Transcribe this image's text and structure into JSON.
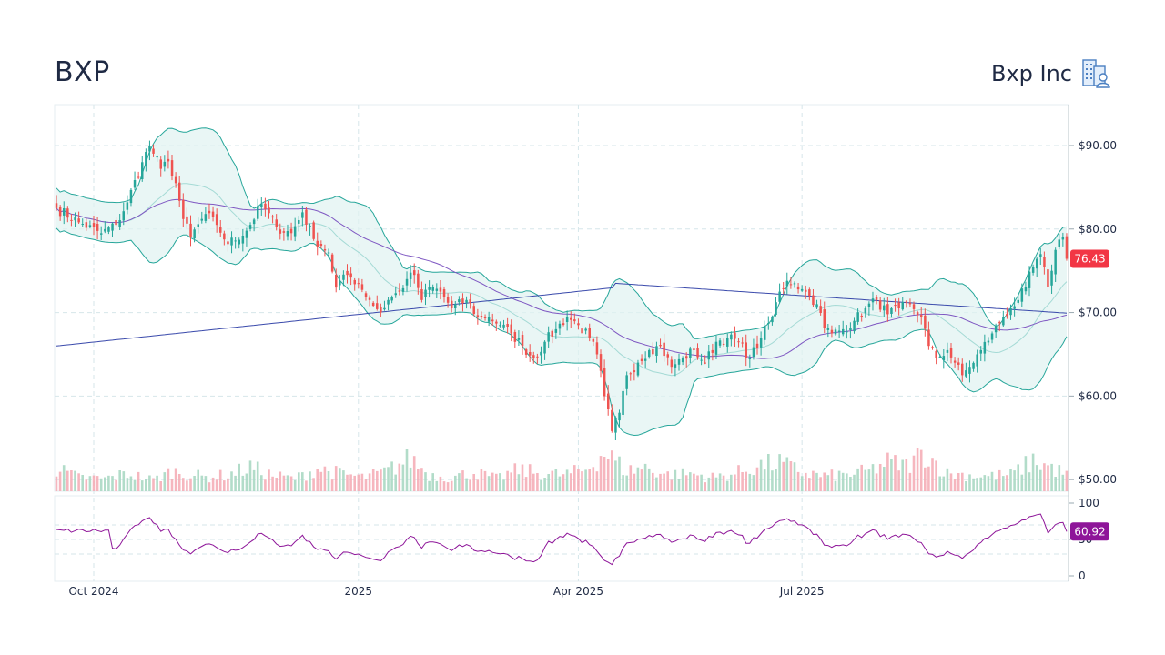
{
  "header": {
    "ticker": "BXP",
    "company_name": "Bxp Inc",
    "company_icon": "office-building-user-icon"
  },
  "chart_data": {
    "type": "candlestick",
    "title": "BXP",
    "subtitle": "Bxp Inc",
    "x_tick_labels": [
      "Oct 2024",
      "2025",
      "Apr 2025",
      "Jul 2025"
    ],
    "x_tick_indices": [
      10,
      81,
      140,
      200
    ],
    "price_axis": {
      "ticks": [
        90,
        80,
        70,
        60,
        50
      ],
      "tick_labels": [
        "$90.00",
        "$80.00",
        "$70.00",
        "$60.00",
        "$50.00"
      ],
      "range": [
        48.6,
        94.9
      ]
    },
    "rsi_axis": {
      "ticks": [
        100,
        50,
        0
      ],
      "tick_labels": [
        "100",
        "50",
        "0"
      ],
      "range": [
        0,
        100
      ],
      "bands": [
        30,
        50,
        70
      ]
    },
    "last_price": {
      "value": 76.43,
      "label": "76.43",
      "color": "#f23645"
    },
    "last_rsi": {
      "value": 60.92,
      "label": "60.92",
      "color": "#8e1599"
    },
    "colors": {
      "up": "#26a69a",
      "down": "#ef5350",
      "bollinger": "#26a69a",
      "bollinger_fill": "#e0f2f1",
      "sma_short": "#7e57c2",
      "sma_long": "#3949ab",
      "rsi": "#8e1599",
      "grid": "#d6e6ea"
    },
    "anchors_close": [
      [
        0,
        82.5
      ],
      [
        6,
        80.8
      ],
      [
        12,
        79.5
      ],
      [
        16,
        80.5
      ],
      [
        19,
        83.2
      ],
      [
        23,
        88.0
      ],
      [
        25,
        90.0
      ],
      [
        28,
        87.2
      ],
      [
        30,
        88.1
      ],
      [
        32,
        85.5
      ],
      [
        34,
        81.2
      ],
      [
        36,
        79.0
      ],
      [
        40,
        81.8
      ],
      [
        43,
        80.5
      ],
      [
        46,
        78.2
      ],
      [
        51,
        79.8
      ],
      [
        55,
        83.0
      ],
      [
        59,
        80.2
      ],
      [
        63,
        79.5
      ],
      [
        66,
        82.0
      ],
      [
        69,
        78.8
      ],
      [
        71,
        78.0
      ],
      [
        73,
        77.2
      ],
      [
        75,
        73.0
      ],
      [
        78,
        74.5
      ],
      [
        81,
        73.5
      ],
      [
        84,
        71.5
      ],
      [
        87,
        70.0
      ],
      [
        89,
        71.5
      ],
      [
        92,
        72.5
      ],
      [
        94,
        74.0
      ],
      [
        96,
        74.5
      ],
      [
        98,
        71.5
      ],
      [
        100,
        73.0
      ],
      [
        103,
        72.5
      ],
      [
        106,
        70.5
      ],
      [
        110,
        71.5
      ],
      [
        113,
        69.5
      ],
      [
        116,
        69.5
      ],
      [
        119,
        68.5
      ],
      [
        122,
        67.5
      ],
      [
        125,
        66.0
      ],
      [
        128,
        64.5
      ],
      [
        131,
        66.5
      ],
      [
        134,
        68.0
      ],
      [
        137,
        69.5
      ],
      [
        140,
        68.5
      ],
      [
        143,
        67.0
      ],
      [
        145,
        65.0
      ],
      [
        147,
        60.0
      ],
      [
        149,
        55.8
      ],
      [
        151,
        58.0
      ],
      [
        153,
        62.5
      ],
      [
        156,
        64.0
      ],
      [
        159,
        65.5
      ],
      [
        162,
        66.0
      ],
      [
        165,
        63.5
      ],
      [
        168,
        64.5
      ],
      [
        171,
        65.5
      ],
      [
        174,
        64.0
      ],
      [
        177,
        66.5
      ],
      [
        180,
        67.0
      ],
      [
        183,
        66.5
      ],
      [
        186,
        64.5
      ],
      [
        189,
        67.0
      ],
      [
        192,
        69.5
      ],
      [
        194,
        72.5
      ],
      [
        196,
        73.8
      ],
      [
        198,
        73.5
      ],
      [
        200,
        72.8
      ],
      [
        202,
        72.0
      ],
      [
        204,
        71.0
      ],
      [
        206,
        68.2
      ],
      [
        208,
        67.5
      ],
      [
        211,
        68.0
      ],
      [
        214,
        69.0
      ],
      [
        217,
        70.5
      ],
      [
        220,
        71.5
      ],
      [
        223,
        69.8
      ],
      [
        226,
        70.5
      ],
      [
        229,
        71.0
      ],
      [
        232,
        69.5
      ],
      [
        234,
        66.0
      ],
      [
        236,
        64.5
      ],
      [
        239,
        65.5
      ],
      [
        241,
        64.0
      ],
      [
        243,
        62.5
      ],
      [
        245,
        63.5
      ],
      [
        248,
        65.5
      ],
      [
        251,
        67.5
      ],
      [
        254,
        69.5
      ],
      [
        256,
        70.5
      ],
      [
        258,
        71.5
      ],
      [
        260,
        73.0
      ],
      [
        262,
        75.5
      ],
      [
        264,
        77.0
      ],
      [
        265,
        75.5
      ],
      [
        266,
        73.0
      ],
      [
        267,
        75.0
      ],
      [
        268,
        77.5
      ],
      [
        270,
        79.0
      ],
      [
        271,
        76.43
      ]
    ],
    "bollinger_period": 20,
    "sma_short_period": 50,
    "sma_long_period": 200,
    "rsi_period": 14,
    "volume_axis_range": [
      0,
      100
    ],
    "volume_anchors": [
      [
        0,
        35
      ],
      [
        6,
        22
      ],
      [
        13,
        20
      ],
      [
        19,
        28
      ],
      [
        26,
        18
      ],
      [
        31,
        32
      ],
      [
        40,
        22
      ],
      [
        46,
        26
      ],
      [
        52,
        38
      ],
      [
        58,
        25
      ],
      [
        64,
        20
      ],
      [
        70,
        36
      ],
      [
        76,
        28
      ],
      [
        82,
        22
      ],
      [
        88,
        30
      ],
      [
        95,
        52
      ],
      [
        100,
        26
      ],
      [
        106,
        22
      ],
      [
        112,
        30
      ],
      [
        118,
        20
      ],
      [
        124,
        34
      ],
      [
        130,
        28
      ],
      [
        136,
        26
      ],
      [
        142,
        34
      ],
      [
        147,
        62
      ],
      [
        153,
        32
      ],
      [
        158,
        38
      ],
      [
        164,
        26
      ],
      [
        170,
        28
      ],
      [
        176,
        22
      ],
      [
        182,
        28
      ],
      [
        188,
        40
      ],
      [
        194,
        45
      ],
      [
        200,
        30
      ],
      [
        206,
        24
      ],
      [
        212,
        26
      ],
      [
        218,
        32
      ],
      [
        223,
        46
      ],
      [
        228,
        40
      ],
      [
        233,
        62
      ],
      [
        239,
        28
      ],
      [
        244,
        26
      ],
      [
        250,
        24
      ],
      [
        256,
        26
      ],
      [
        262,
        48
      ],
      [
        266,
        40
      ],
      [
        271,
        26
      ]
    ]
  }
}
